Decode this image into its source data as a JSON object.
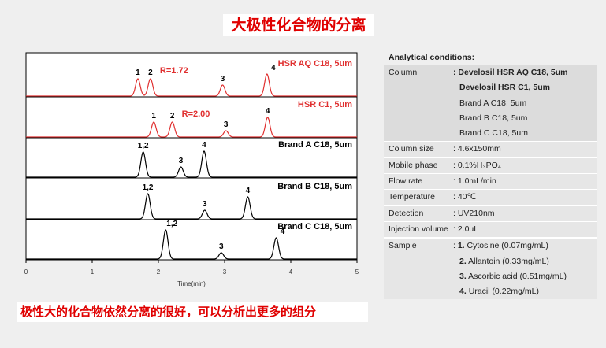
{
  "title": "大极性化合物的分离",
  "footer": "极性大的化合物依然分离的很好，可以分析出更多的组分",
  "conditions": {
    "heading": "Analytical conditions:",
    "column_label": "Column",
    "columns": [
      ": Develosil HSR AQ C18, 5um",
      "Develosil HSR C1, 5um",
      "Brand A C18, 5um",
      "Brand B C18, 5um",
      "Brand C C18, 5um"
    ],
    "rows": [
      {
        "k": "Column size",
        "v": ": 4.6x150mm"
      },
      {
        "k": "Mobile phase",
        "v": ": 0.1%H₃PO₄"
      },
      {
        "k": "Flow rate",
        "v": ": 1.0mL/min"
      },
      {
        "k": "Temperature",
        "v": ": 40℃"
      },
      {
        "k": "Detection",
        "v": ": UV210nm"
      },
      {
        "k": "Injection volume",
        "v": ": 2.0uL"
      }
    ],
    "sample_label": "Sample",
    "samples": [
      {
        "n": "1.",
        "t": "Cytosine (0.07mg/mL)"
      },
      {
        "n": "2.",
        "t": "Allantoin (0.33mg/mL)"
      },
      {
        "n": "3.",
        "t": "Ascorbic acid (0.51mg/mL)"
      },
      {
        "n": "4.",
        "t": "Uracil (0.22mg/mL)"
      }
    ]
  },
  "chart_data": {
    "type": "line",
    "xlabel": "Time(min)",
    "xlim": [
      0,
      5
    ],
    "xticks": [
      "0",
      "1",
      "2",
      "3",
      "4",
      "5"
    ],
    "series": [
      {
        "name": "HSR AQ C18, 5um",
        "color": "#e03030",
        "annotation": "R=1.72",
        "peaks": [
          {
            "label": "1",
            "t": 1.69,
            "h": 22
          },
          {
            "label": "2",
            "t": 1.88,
            "h": 22
          },
          {
            "label": "3",
            "t": 2.97,
            "h": 14
          },
          {
            "label": "4",
            "t": 3.64,
            "h": 28
          }
        ]
      },
      {
        "name": "HSR C1, 5um",
        "color": "#e03030",
        "annotation": "R=2.00",
        "peaks": [
          {
            "label": "1",
            "t": 1.93,
            "h": 19
          },
          {
            "label": "2",
            "t": 2.21,
            "h": 19
          },
          {
            "label": "3",
            "t": 3.02,
            "h": 8
          },
          {
            "label": "4",
            "t": 3.65,
            "h": 25
          }
        ]
      },
      {
        "name": "Brand A C18, 5um",
        "color": "#000000",
        "peaks": [
          {
            "label": "1,2",
            "t": 1.77,
            "h": 32
          },
          {
            "label": "3",
            "t": 2.34,
            "h": 13
          },
          {
            "label": "4",
            "t": 2.69,
            "h": 33
          }
        ]
      },
      {
        "name": "Brand B C18, 5um",
        "color": "#000000",
        "peaks": [
          {
            "label": "1,2",
            "t": 1.84,
            "h": 32
          },
          {
            "label": "3",
            "t": 2.7,
            "h": 11
          },
          {
            "label": "4",
            "t": 3.35,
            "h": 28
          }
        ]
      },
      {
        "name": "Brand C C18, 5um",
        "color": "#000000",
        "peaks": [
          {
            "label": "1,2",
            "t": 2.11,
            "h": 37
          },
          {
            "label": "3",
            "t": 2.95,
            "h": 8
          },
          {
            "label": "4",
            "t": 3.78,
            "h": 27
          }
        ]
      }
    ]
  }
}
